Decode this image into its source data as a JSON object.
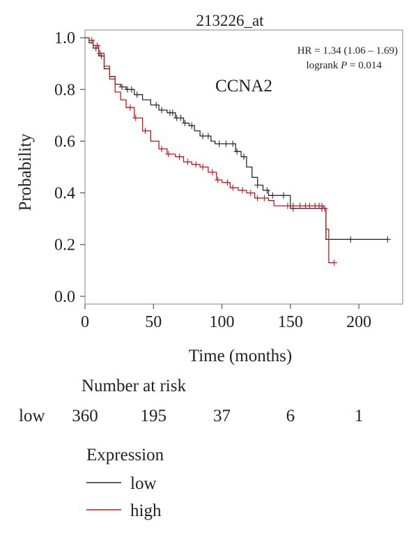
{
  "chart_data": {
    "type": "line",
    "title": "213226_at",
    "gene_label": "CCNA2",
    "hr_text": "HR = 1.34 (1.06 – 1.69)",
    "logrank_prefix": "logrank ",
    "logrank_p_symbol": "P",
    "logrank_value": " = 0.014",
    "xlabel": "Time (months)",
    "ylabel": "Probability",
    "xlim": [
      0,
      232
    ],
    "ylim": [
      -0.03,
      1.03
    ],
    "x_ticks": [
      0,
      50,
      100,
      150,
      200
    ],
    "x_tick_labels": [
      "0",
      "50",
      "100",
      "150",
      "200"
    ],
    "y_ticks": [
      0.0,
      0.2,
      0.4,
      0.6,
      0.8,
      1.0
    ],
    "y_tick_labels": [
      "0.0",
      "0.2",
      "0.4",
      "0.6",
      "0.8",
      "1.0"
    ],
    "grid": false,
    "series": [
      {
        "name": "low",
        "color": "#2b2b2b",
        "points": [
          [
            0,
            1.0
          ],
          [
            3,
            0.98
          ],
          [
            6,
            0.96
          ],
          [
            10,
            0.93
          ],
          [
            14,
            0.88
          ],
          [
            18,
            0.85
          ],
          [
            22,
            0.82
          ],
          [
            26,
            0.81
          ],
          [
            30,
            0.8
          ],
          [
            36,
            0.78
          ],
          [
            42,
            0.76
          ],
          [
            48,
            0.74
          ],
          [
            54,
            0.72
          ],
          [
            60,
            0.71
          ],
          [
            66,
            0.69
          ],
          [
            72,
            0.67
          ],
          [
            76,
            0.66
          ],
          [
            80,
            0.64
          ],
          [
            84,
            0.62
          ],
          [
            88,
            0.62
          ],
          [
            92,
            0.6
          ],
          [
            95,
            0.59
          ],
          [
            100,
            0.59
          ],
          [
            106,
            0.59
          ],
          [
            110,
            0.56
          ],
          [
            114,
            0.54
          ],
          [
            118,
            0.5
          ],
          [
            122,
            0.46
          ],
          [
            126,
            0.43
          ],
          [
            130,
            0.41
          ],
          [
            134,
            0.39
          ],
          [
            138,
            0.39
          ],
          [
            142,
            0.39
          ],
          [
            150,
            0.34
          ],
          [
            160,
            0.34
          ],
          [
            170,
            0.34
          ],
          [
            174,
            0.34
          ],
          [
            176,
            0.22
          ],
          [
            190,
            0.22
          ],
          [
            221,
            0.22
          ]
        ],
        "censor_x": [
          8,
          12,
          27,
          31,
          34,
          38,
          52,
          56,
          62,
          64,
          67,
          70,
          73,
          78,
          86,
          90,
          98,
          103,
          108,
          111,
          116,
          126,
          133,
          137,
          145,
          152,
          173,
          194,
          221
        ]
      },
      {
        "name": "high",
        "color": "#c8161d",
        "points": [
          [
            0,
            1.0
          ],
          [
            3,
            0.99
          ],
          [
            6,
            0.97
          ],
          [
            10,
            0.94
          ],
          [
            14,
            0.89
          ],
          [
            18,
            0.84
          ],
          [
            22,
            0.79
          ],
          [
            26,
            0.76
          ],
          [
            30,
            0.73
          ],
          [
            36,
            0.69
          ],
          [
            42,
            0.64
          ],
          [
            48,
            0.6
          ],
          [
            54,
            0.57
          ],
          [
            60,
            0.55
          ],
          [
            66,
            0.54
          ],
          [
            72,
            0.52
          ],
          [
            78,
            0.51
          ],
          [
            84,
            0.5
          ],
          [
            90,
            0.48
          ],
          [
            96,
            0.45
          ],
          [
            100,
            0.44
          ],
          [
            106,
            0.42
          ],
          [
            112,
            0.41
          ],
          [
            118,
            0.4
          ],
          [
            124,
            0.38
          ],
          [
            130,
            0.38
          ],
          [
            134,
            0.37
          ],
          [
            138,
            0.35
          ],
          [
            144,
            0.35
          ],
          [
            152,
            0.35
          ],
          [
            164,
            0.35
          ],
          [
            170,
            0.35
          ],
          [
            174,
            0.34
          ],
          [
            176,
            0.26
          ],
          [
            178,
            0.26
          ],
          [
            178,
            0.13
          ],
          [
            182,
            0.13
          ]
        ],
        "censor_x": [
          5,
          9,
          11,
          33,
          37,
          44,
          56,
          61,
          69,
          75,
          81,
          86,
          93,
          97,
          104,
          108,
          115,
          121,
          126,
          131,
          148,
          152,
          157,
          161,
          164,
          168,
          171,
          173,
          175,
          182
        ]
      }
    ],
    "risk_table": {
      "title": "Number at risk",
      "row_label": "low",
      "values": [
        "360",
        "195",
        "37",
        "6",
        "1"
      ]
    },
    "legend": {
      "title": "Expression",
      "placement": "below",
      "entries": [
        {
          "label": "low",
          "color": "#2b2b2b"
        },
        {
          "label": "high",
          "color": "#c8161d"
        }
      ]
    }
  }
}
